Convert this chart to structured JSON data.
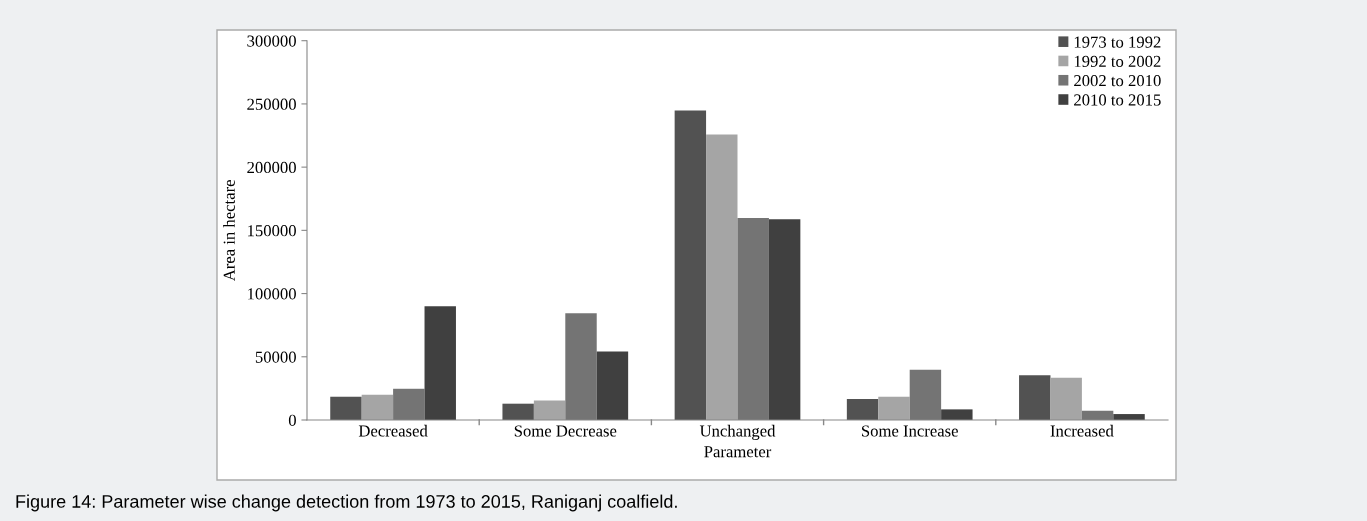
{
  "chart_data": {
    "type": "bar",
    "xlabel": "Parameter",
    "ylabel": "Area in hectare",
    "categories": [
      "Decreased",
      "Some Decrease",
      "Unchanged",
      "Some Increase",
      "Increased"
    ],
    "series": [
      {
        "name": "1973 to 1992",
        "color": "#525252",
        "values": [
          18400,
          12900,
          244700,
          16600,
          35300
        ]
      },
      {
        "name": "1992 to 2002",
        "color": "#a5a5a5",
        "values": [
          20000,
          15500,
          225800,
          18400,
          33400
        ]
      },
      {
        "name": "2002 to 2010",
        "color": "#747474",
        "values": [
          24700,
          84500,
          159700,
          39700,
          7400
        ]
      },
      {
        "name": "2010 to 2015",
        "color": "#404040",
        "values": [
          90000,
          54200,
          158700,
          8400,
          4700
        ]
      }
    ],
    "ylim": [
      0,
      300000
    ],
    "yticks": [
      0,
      50000,
      100000,
      150000,
      200000,
      250000,
      300000
    ],
    "grid": false,
    "legend": "top right",
    "annotations": [
      "Figure 14: Parameter wise change detection from 1973 to 2015, Raniganj coalfield."
    ]
  }
}
